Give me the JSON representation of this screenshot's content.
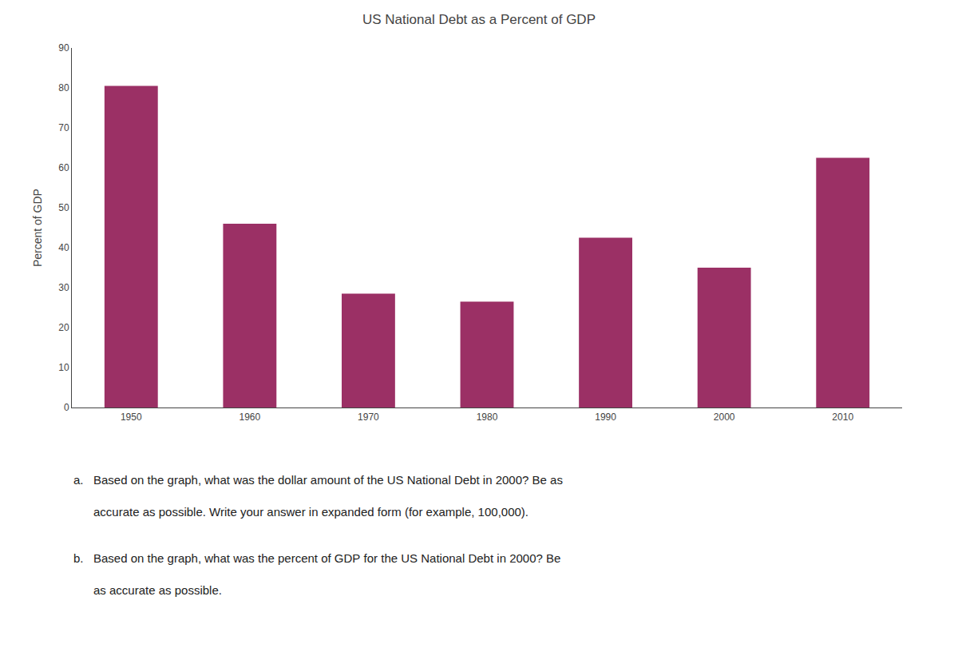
{
  "chart_data": {
    "type": "bar",
    "title": "US National Debt as a Percent of GDP",
    "categories": [
      1950,
      1960,
      1970,
      1980,
      1990,
      2000,
      2010
    ],
    "values": [
      80.5,
      46.0,
      28.5,
      26.5,
      42.5,
      35.0,
      62.5
    ],
    "color": "#9B3065",
    "ylabel": "Percent of GDP",
    "ylim": [
      0,
      90
    ],
    "yticks": [
      0,
      10,
      20,
      30,
      40,
      50,
      60,
      70,
      80,
      90
    ],
    "grid": false,
    "annotations": [
      "a.   Based on the graph, what was the dollar amount of the US National Debt in 2000? Be as",
      "      accurate as possible. Write your answer in expanded form (for example, 100,000).",
      "b.   Based on the graph, what was the percent of GDP for the US National Debt in 2000? Be",
      "      as accurate as possible."
    ]
  }
}
